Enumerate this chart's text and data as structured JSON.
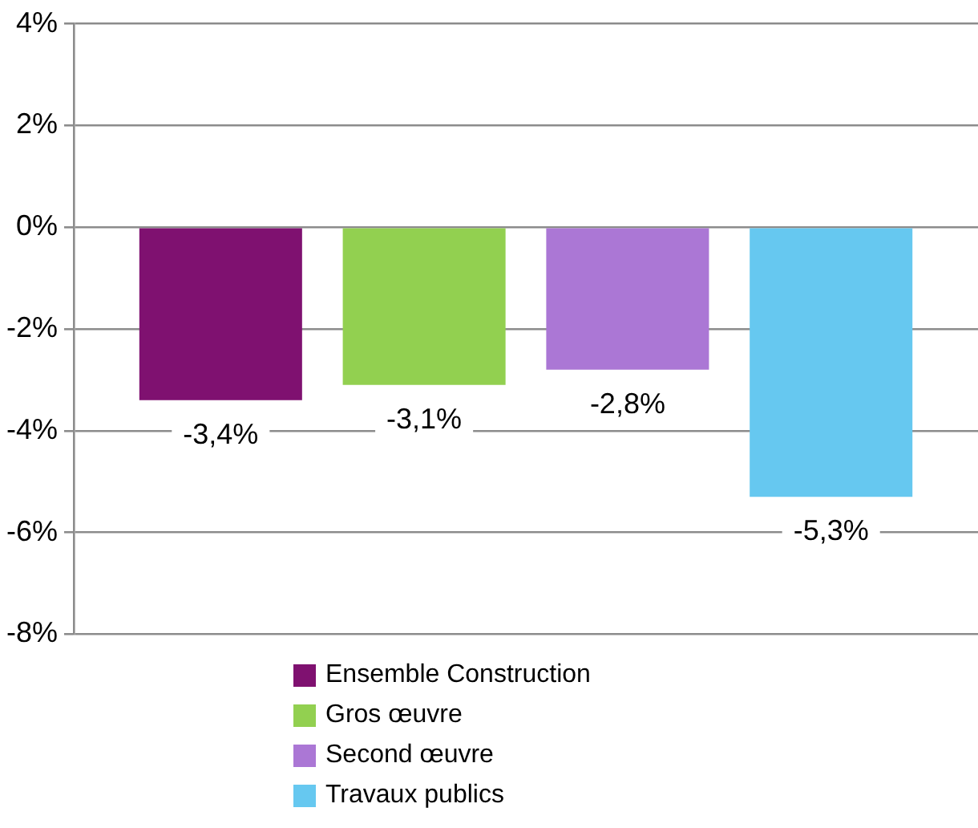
{
  "chart_data": {
    "type": "bar",
    "categories": [
      null
    ],
    "series": [
      {
        "name": "Ensemble Construction",
        "color": "#7f1170",
        "values": [
          -3.4
        ],
        "value_labels": [
          "-3,4%"
        ]
      },
      {
        "name": "Gros œuvre",
        "color": "#92d050",
        "values": [
          -3.1
        ],
        "value_labels": [
          "-3,1%"
        ]
      },
      {
        "name": "Second œuvre",
        "color": "#ab77d5",
        "values": [
          -2.8
        ],
        "value_labels": [
          "-2,8%"
        ]
      },
      {
        "name": "Travaux publics",
        "color": "#66c8f0",
        "values": [
          -5.3
        ],
        "value_labels": [
          "-5,3%"
        ]
      }
    ],
    "ylim": [
      -8,
      4
    ],
    "yticks": [
      {
        "value": -8,
        "label": "-8%"
      },
      {
        "value": -6,
        "label": "-6%"
      },
      {
        "value": -4,
        "label": "-4%"
      },
      {
        "value": -2,
        "label": "-2%"
      },
      {
        "value": 0,
        "label": "0%"
      },
      {
        "value": 2,
        "label": "2%"
      },
      {
        "value": 4,
        "label": "4%"
      }
    ],
    "grid": "y",
    "legend": "bottom",
    "tick_labels": "y"
  }
}
